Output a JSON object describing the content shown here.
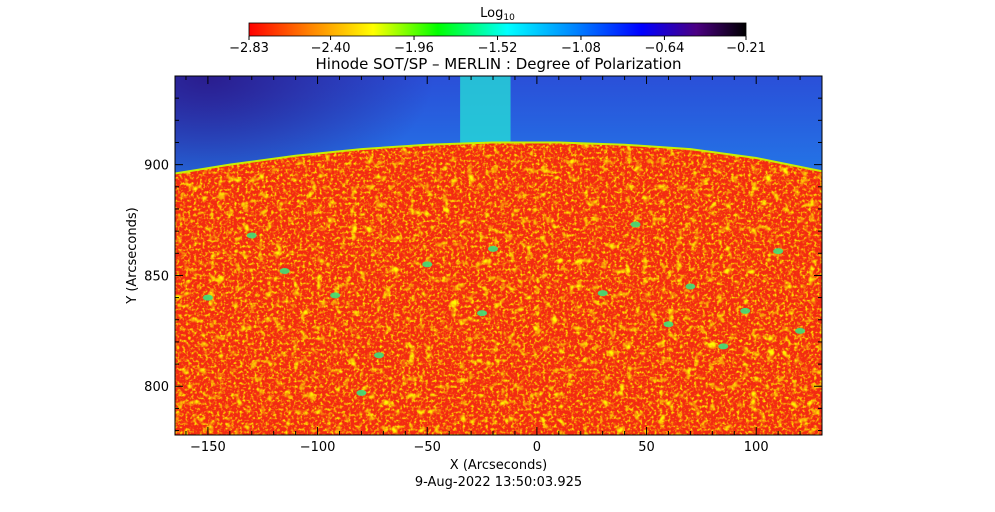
{
  "chart_data": {
    "type": "heatmap",
    "title": "Hinode SOT/SP – MERLIN : Degree of Polarization",
    "xlabel": "X (Arcseconds)",
    "ylabel": "Y (Arcseconds)",
    "xlim": [
      -165,
      130
    ],
    "ylim": [
      778,
      940
    ],
    "x_ticks": [
      -150,
      -100,
      -50,
      0,
      50,
      100
    ],
    "y_ticks": [
      800,
      850,
      900
    ],
    "x_tick_labels": [
      "−150",
      "−100",
      "−50",
      "0",
      "50",
      "100"
    ],
    "y_tick_labels": [
      "800",
      "850",
      "900"
    ],
    "timestamp": "9-Aug-2022 13:50:03.925",
    "colorbar": {
      "label": "Log",
      "label_subscript": "10",
      "min": -2.83,
      "max": -0.21,
      "tick_values": [
        -2.83,
        -2.4,
        -1.96,
        -1.52,
        -1.08,
        -0.64,
        -0.21
      ],
      "tick_labels": [
        "−2.83",
        "−2.40",
        "−1.96",
        "−1.52",
        "−1.08",
        "−0.64",
        "−0.21"
      ],
      "colormap": [
        "#ff0000",
        "#ff8000",
        "#ffff00",
        "#00ff00",
        "#00ffff",
        "#0080ff",
        "#0000ff",
        "#4b0082",
        "#000000"
      ]
    },
    "limb": {
      "x": [
        -165,
        -140,
        -110,
        -80,
        -50,
        -20,
        10,
        40,
        70,
        100,
        130
      ],
      "y": [
        896,
        900,
        904,
        907,
        909,
        910,
        910,
        909,
        907,
        903,
        897
      ]
    },
    "disk_value": -2.7,
    "offlimb_value": -1.3
  }
}
